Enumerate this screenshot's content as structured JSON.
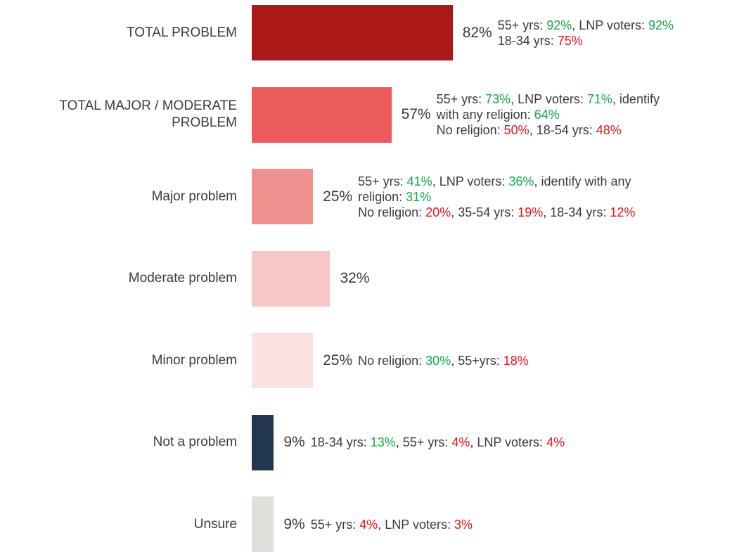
{
  "chart_data": {
    "type": "bar",
    "orientation": "horizontal",
    "title": "",
    "xlabel": "",
    "ylabel": "",
    "xlim": [
      0,
      100
    ],
    "grid": false,
    "legend": "none",
    "categories": [
      "TOTAL PROBLEM",
      "TOTAL MAJOR / MODERATE PROBLEM",
      "Major problem",
      "Moderate problem",
      "Minor problem",
      "Not a problem",
      "Unsure"
    ],
    "values": [
      82,
      57,
      25,
      32,
      25,
      9,
      9
    ],
    "value_labels": [
      "82%",
      "57%",
      "25%",
      "32%",
      "25%",
      "9%",
      "9%"
    ],
    "bar_colors": [
      "#ab1818",
      "#eb5b5b",
      "#f09190",
      "#f7c6c6",
      "#fbe2e2",
      "#22374f",
      "#dfe0db"
    ],
    "annotations": [
      {
        "lines": [
          [
            {
              "t": "55+ yrs: ",
              "c": "n"
            },
            {
              "t": "92%",
              "c": "pos"
            },
            {
              "t": ", LNP voters: ",
              "c": "n"
            },
            {
              "t": "92%",
              "c": "pos"
            }
          ],
          [
            {
              "t": "18-34 yrs: ",
              "c": "n"
            },
            {
              "t": "75%",
              "c": "neg"
            }
          ]
        ]
      },
      {
        "lines": [
          [
            {
              "t": "55+ yrs: ",
              "c": "n"
            },
            {
              "t": "73%",
              "c": "pos"
            },
            {
              "t": ", LNP voters: ",
              "c": "n"
            },
            {
              "t": "71%",
              "c": "pos"
            },
            {
              "t": ", identify",
              "c": "n"
            }
          ],
          [
            {
              "t": "with any religion: ",
              "c": "n"
            },
            {
              "t": "64%",
              "c": "pos"
            }
          ],
          [
            {
              "t": "No religion: ",
              "c": "n"
            },
            {
              "t": "50%",
              "c": "neg"
            },
            {
              "t": ", 18-54 yrs: ",
              "c": "n"
            },
            {
              "t": "48%",
              "c": "neg"
            }
          ]
        ]
      },
      {
        "lines": [
          [
            {
              "t": "55+ yrs: ",
              "c": "n"
            },
            {
              "t": "41%",
              "c": "pos"
            },
            {
              "t": ", LNP voters: ",
              "c": "n"
            },
            {
              "t": "36%",
              "c": "pos"
            },
            {
              "t": ", identify with any",
              "c": "n"
            }
          ],
          [
            {
              "t": "religion: ",
              "c": "n"
            },
            {
              "t": "31%",
              "c": "pos"
            }
          ],
          [
            {
              "t": "No religion: ",
              "c": "n"
            },
            {
              "t": "20%",
              "c": "neg"
            },
            {
              "t": ", 35-54 yrs: ",
              "c": "n"
            },
            {
              "t": "19%",
              "c": "neg"
            },
            {
              "t": ", 18-34 yrs: ",
              "c": "n"
            },
            {
              "t": "12%",
              "c": "neg"
            }
          ]
        ]
      },
      {
        "lines": []
      },
      {
        "lines": [
          [
            {
              "t": "No religion: ",
              "c": "n"
            },
            {
              "t": "30%",
              "c": "pos"
            },
            {
              "t": ", 55+yrs: ",
              "c": "n"
            },
            {
              "t": "18%",
              "c": "neg"
            }
          ]
        ]
      },
      {
        "lines": [
          [
            {
              "t": "18-34 yrs: ",
              "c": "n"
            },
            {
              "t": "13%",
              "c": "pos"
            },
            {
              "t": ", 55+ yrs: ",
              "c": "n"
            },
            {
              "t": "4%",
              "c": "neg"
            },
            {
              "t": ", LNP voters: ",
              "c": "n"
            },
            {
              "t": "4%",
              "c": "neg"
            }
          ]
        ]
      },
      {
        "lines": [
          [
            {
              "t": "55+ yrs: ",
              "c": "n"
            },
            {
              "t": "4%",
              "c": "neg"
            },
            {
              "t": ", LNP voters: ",
              "c": "n"
            },
            {
              "t": "3%",
              "c": "neg"
            }
          ]
        ]
      }
    ]
  }
}
